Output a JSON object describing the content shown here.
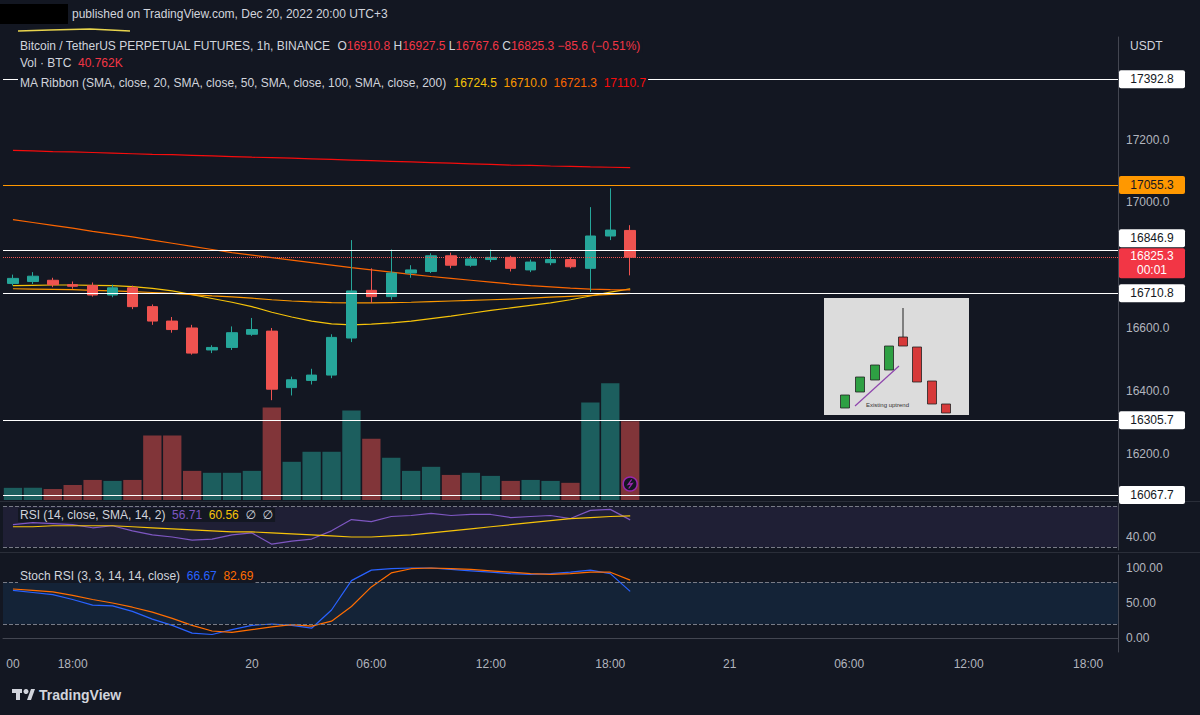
{
  "header": {
    "published": "published on TradingView.com, Dec 20, 2022 20:00 UTC+3",
    "ohlc": [
      {
        "key": "O",
        "value": "16910.8"
      },
      {
        "key": "H",
        "value": "16927.5"
      },
      {
        "key": "L",
        "value": "16767.6"
      },
      {
        "key": "C",
        "value": "16825.3"
      }
    ],
    "change": "−85.6 (−0.51%)",
    "currency": "USDT",
    "brand": "TradingView"
  },
  "inset": {
    "text": "Existing uptrend"
  },
  "chart_data": [
    {
      "type": "candlestick",
      "title": "Bitcoin / TetherUS PERPETUAL FUTURES, 1h, BINANCE",
      "categories": [
        "00",
        null,
        null,
        "18:00",
        null,
        null,
        null,
        null,
        null,
        null,
        null,
        null,
        "20",
        null,
        null,
        null,
        null,
        null,
        "06:00",
        null,
        null,
        null,
        null,
        null,
        "12:00",
        null,
        null,
        null,
        null,
        null,
        "18:00",
        null,
        null,
        null,
        null,
        null,
        "21",
        null,
        null,
        null,
        null,
        null,
        "06:00",
        null,
        null,
        null,
        null,
        null,
        "12:00",
        null,
        null,
        null,
        null,
        null,
        "18:00",
        null
      ],
      "ohlc": {
        "open": [
          16742,
          16748,
          16752,
          16738,
          16735,
          16705,
          16728,
          16668,
          16622,
          16600,
          16530,
          16538,
          16580,
          16590,
          16410,
          16433,
          16450,
          16568,
          16720,
          16700,
          16775,
          16780,
          16830,
          16800,
          16818,
          16825,
          16785,
          16808,
          16818,
          16790,
          16893,
          16910.8,
          null,
          null,
          null,
          null,
          null,
          null,
          null,
          null,
          null,
          null,
          null,
          null,
          null,
          null,
          null,
          null,
          null,
          null,
          null,
          null,
          null,
          null,
          null,
          null
        ],
        "high": [
          16770,
          16778,
          16760,
          16748,
          16745,
          16738,
          16735,
          16675,
          16635,
          16610,
          16545,
          16605,
          16632,
          16600,
          16445,
          16470,
          16580,
          16880,
          16790,
          16850,
          16800,
          16838,
          16840,
          16830,
          16850,
          16830,
          16818,
          16850,
          16825,
          16985,
          17045,
          16927.5,
          null,
          null,
          null,
          null,
          null,
          null,
          null,
          null,
          null,
          null,
          null,
          null,
          null,
          null,
          null,
          null,
          null,
          null,
          null,
          null,
          null,
          null,
          null,
          null
        ],
        "low": [
          16735,
          16740,
          16730,
          16725,
          16700,
          16698,
          16660,
          16610,
          16585,
          16515,
          16520,
          16530,
          16575,
          16370,
          16385,
          16420,
          16440,
          16555,
          16680,
          16690,
          16760,
          16775,
          16790,
          16795,
          16810,
          16780,
          16778,
          16800,
          16790,
          16715,
          16880,
          16767.6,
          null,
          null,
          null,
          null,
          null,
          null,
          null,
          null,
          null,
          null,
          null,
          null,
          null,
          null,
          null,
          null,
          null,
          null,
          null,
          null,
          null,
          null,
          null,
          null
        ],
        "close": [
          16758,
          16765,
          16738,
          16733,
          16705,
          16728,
          16668,
          16622,
          16595,
          16520,
          16538,
          16585,
          16595,
          16405,
          16435,
          16450,
          16570,
          16718,
          16700,
          16775,
          16785,
          16830,
          16800,
          16820,
          16825,
          16790,
          16810,
          16818,
          16795,
          16893,
          16912,
          16825.3,
          null,
          null,
          null,
          null,
          null,
          null,
          null,
          null,
          null,
          null,
          null,
          null,
          null,
          null,
          null,
          null,
          null,
          null,
          null,
          null,
          null,
          null,
          null,
          null
        ]
      },
      "volume": {
        "title": "Vol · BTC",
        "value_label": "40.762K",
        "ylim": [
          0,
          240000
        ],
        "values": [
          6300,
          6300,
          5700,
          7800,
          10400,
          9900,
          10400,
          33400,
          33400,
          15100,
          14100,
          14100,
          15100,
          48000,
          19800,
          25000,
          25000,
          46400,
          31800,
          21900,
          15100,
          17200,
          13000,
          14100,
          12500,
          9900,
          10400,
          9900,
          8900,
          50600,
          60500,
          40762,
          null,
          null,
          null,
          null,
          null,
          null,
          null,
          null,
          null,
          null,
          null,
          null,
          null,
          null,
          null,
          null,
          null,
          null,
          null,
          null,
          null,
          null,
          null,
          null
        ]
      },
      "ma_ribbon": {
        "title": "MA Ribbon (SMA, close, 20, SMA, close, 50, SMA, close, 100, SMA, close, 200)",
        "series": [
          {
            "color": "#f6c309",
            "value_label": "16724.5",
            "values": [
              16735,
              16736,
              16737,
              16737,
              16736,
              16735,
              16732,
              16726,
              16718,
              16706,
              16694,
              16682,
              16668,
              16650,
              16635,
              16622,
              16613,
              16610,
              16612,
              16616,
              16622,
              16630,
              16638,
              16647,
              16656,
              16664,
              16672,
              16680,
              16690,
              16702,
              16714,
              16724.5,
              null,
              null,
              null,
              null,
              null,
              null,
              null,
              null,
              null,
              null,
              null,
              null,
              null,
              null,
              null,
              null,
              null,
              null,
              null,
              null,
              null,
              null,
              null,
              null
            ]
          },
          {
            "color": "#fb9800",
            "value_label": "16710.0",
            "values": [
              16725,
              16724,
              16723,
              16722,
              16720,
              16718,
              16716,
              16713,
              16710,
              16706,
              16702,
              16699,
              16695,
              16690,
              16686,
              16683,
              16681,
              16680,
              16680,
              16681,
              16682,
              16684,
              16686,
              16688,
              16690,
              16692,
              16695,
              16698,
              16701,
              16704,
              16707,
              16710.0,
              null,
              null,
              null,
              null,
              null,
              null,
              null,
              null,
              null,
              null,
              null,
              null,
              null,
              null,
              null,
              null,
              null,
              null,
              null,
              null,
              null,
              null,
              null,
              null
            ]
          },
          {
            "color": "#fb6500",
            "value_label": "16721.3",
            "values": [
              16945,
              16936,
              16927,
              16918,
              16908,
              16899,
              16890,
              16880,
              16870,
              16860,
              16850,
              16840,
              16832,
              16824,
              16816,
              16808,
              16800,
              16792,
              16785,
              16778,
              16771,
              16764,
              16758,
              16752,
              16746,
              16740,
              16735,
              16731,
              16727,
              16724,
              16722,
              16721.3,
              null,
              null,
              null,
              null,
              null,
              null,
              null,
              null,
              null,
              null,
              null,
              null,
              null,
              null,
              null,
              null,
              null,
              null,
              null,
              null,
              null,
              null,
              null,
              null
            ]
          },
          {
            "color": "#f60c0c",
            "value_label": "17110.7",
            "values": [
              17166,
              17164,
              17162,
              17161,
              17159,
              17157,
              17155,
              17153,
              17152,
              17150,
              17148,
              17146,
              17144,
              17143,
              17141,
              17139,
              17137,
              17135,
              17133,
              17131,
              17129,
              17127,
              17125,
              17123,
              17121,
              17119,
              17118,
              17116,
              17115,
              17113,
              17112,
              17110.7,
              null,
              null,
              null,
              null,
              null,
              null,
              null,
              null,
              null,
              null,
              null,
              null,
              null,
              null,
              null,
              null,
              null,
              null,
              null,
              null,
              null,
              null,
              null,
              null
            ]
          }
        ]
      },
      "levels": [
        {
          "value": 17392.8,
          "color": "#ffffff"
        },
        {
          "value": 17055.3,
          "color": "#ff9800"
        },
        {
          "value": 16846.9,
          "color": "#ffffff"
        },
        {
          "value": 16710.8,
          "color": "#ffffff"
        },
        {
          "value": 16305.7,
          "color": "#ffffff"
        },
        {
          "value": 16067.7,
          "color": "#ffffff"
        }
      ],
      "last_price": {
        "value": 16825.3,
        "countdown": "00:01"
      },
      "ylim": [
        16052,
        17527
      ],
      "yticks": [
        {
          "value": 17200,
          "label": "17200.0"
        },
        {
          "value": 17000,
          "label": "17000.0"
        },
        {
          "value": 16600,
          "label": "16600.0"
        },
        {
          "value": 16400,
          "label": "16400.0"
        },
        {
          "value": 16200,
          "label": "16200.0"
        }
      ],
      "grid": false
    },
    {
      "type": "line",
      "title": "RSI (14, close, SMA, 14, 2)",
      "na_labels": [
        "∅",
        "∅"
      ],
      "series": [
        {
          "color": "#7e57c2",
          "value_label": "56.71",
          "values": [
            52,
            54,
            53,
            52,
            49,
            51,
            46,
            42,
            40,
            37,
            38,
            42,
            44,
            33,
            36,
            38,
            46,
            57,
            55,
            60,
            61,
            63,
            61,
            62,
            62,
            59,
            60,
            61,
            58,
            66,
            67,
            56.71,
            null,
            null,
            null,
            null,
            null,
            null,
            null,
            null,
            null,
            null,
            null,
            null,
            null,
            null,
            null,
            null,
            null,
            null,
            null,
            null,
            null,
            null,
            null,
            null
          ]
        },
        {
          "color": "#f6c309",
          "value_label": "60.56",
          "values": [
            50,
            50,
            51,
            51,
            51,
            51,
            50,
            49,
            48,
            47,
            46,
            45,
            45,
            44,
            43,
            42,
            41,
            40,
            40,
            41,
            42,
            44,
            46,
            48,
            50,
            52,
            54,
            56,
            58,
            59,
            60,
            60.56,
            null,
            null,
            null,
            null,
            null,
            null,
            null,
            null,
            null,
            null,
            null,
            null,
            null,
            null,
            null,
            null,
            null,
            null,
            null,
            null,
            null,
            null,
            null,
            null
          ]
        }
      ],
      "bands": [
        30,
        70
      ],
      "ylim": [
        27.3,
        73.2
      ],
      "yticks": [
        {
          "value": 40,
          "label": "40.00"
        }
      ],
      "grid": false
    },
    {
      "type": "line",
      "title": "Stoch RSI (3, 3, 14, 14, close)",
      "series": [
        {
          "color": "#2962ff",
          "value_label": "66.67",
          "values": [
            68,
            65,
            62,
            55,
            47,
            46,
            38,
            27,
            18,
            7,
            5,
            12,
            18,
            20,
            18,
            14,
            40,
            82,
            97,
            99,
            100,
            100,
            98,
            96,
            94,
            92,
            91,
            92,
            94,
            97,
            92,
            66.67,
            null,
            null,
            null,
            null,
            null,
            null,
            null,
            null,
            null,
            null,
            null,
            null,
            null,
            null,
            null,
            null,
            null,
            null,
            null,
            null,
            null,
            null,
            null,
            null
          ]
        },
        {
          "color": "#ff6d00",
          "value_label": "82.69",
          "values": [
            70,
            68,
            66,
            61,
            55,
            50,
            44,
            37,
            28,
            18,
            10,
            8,
            12,
            16,
            19,
            17,
            24,
            45,
            73,
            93,
            99,
            100,
            99,
            98,
            96,
            94,
            92,
            91,
            92,
            94,
            94,
            82.69,
            null,
            null,
            null,
            null,
            null,
            null,
            null,
            null,
            null,
            null,
            null,
            null,
            null,
            null,
            null,
            null,
            null,
            null,
            null,
            null,
            null,
            null,
            null,
            null
          ]
        }
      ],
      "bands": [
        20,
        80
      ],
      "ylim": [
        -20,
        118.6
      ],
      "yticks": [
        {
          "value": 100,
          "label": "100.00"
        },
        {
          "value": 50,
          "label": "50.00"
        },
        {
          "value": 0,
          "label": "0.00"
        }
      ],
      "grid": false
    }
  ]
}
